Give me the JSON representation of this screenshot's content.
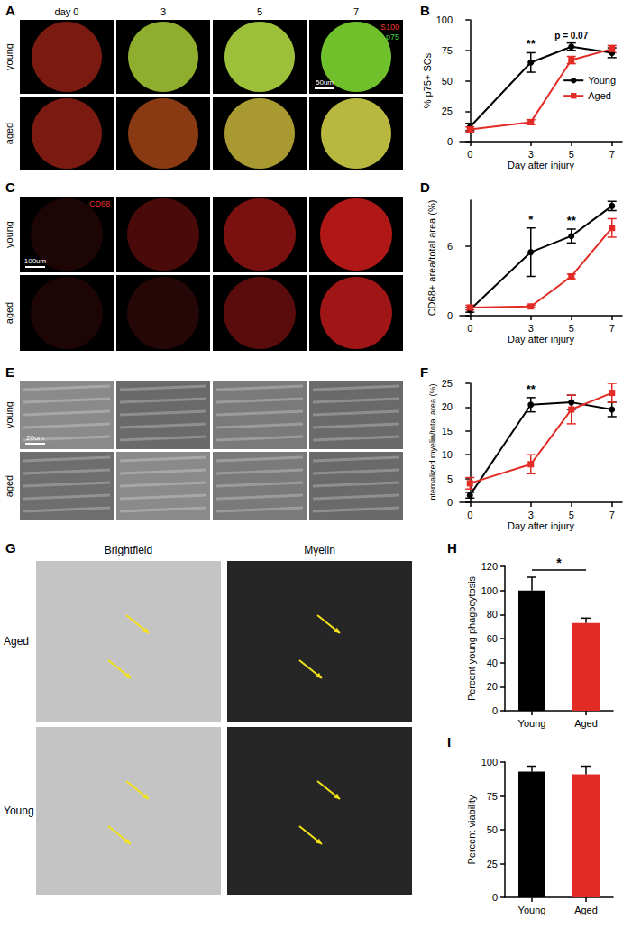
{
  "image_panels": [
    {
      "panel": "A",
      "columns": [
        "day 0",
        "3",
        "5",
        "7"
      ],
      "rows": [
        "young",
        "aged"
      ],
      "stains": [
        {
          "text": "S100",
          "color": "#e8332a"
        },
        {
          "text": "p75",
          "color": "#3fd43f"
        }
      ],
      "scale_bar": "50um"
    },
    {
      "panel": "C",
      "rows": [
        "young",
        "aged"
      ],
      "stains": [
        {
          "text": "CD68",
          "color": "#e8332a"
        }
      ],
      "scale_bar": "100um"
    },
    {
      "panel": "E",
      "rows": [
        "young",
        "aged"
      ],
      "scale_bar": "20um"
    },
    {
      "panel": "G",
      "columns": [
        "Brightfield",
        "Myelin"
      ],
      "rows": [
        "Aged",
        "Young"
      ]
    }
  ],
  "chart_data": [
    {
      "panel": "B",
      "type": "line",
      "x_label": "Day after injury",
      "y_label": "% p75+ SCs",
      "x": [
        0,
        3,
        5,
        7
      ],
      "xlim": [
        -0.5,
        7.5
      ],
      "xticks": [
        0,
        3,
        5,
        7
      ],
      "ylim": [
        0,
        100
      ],
      "yticks": [
        0,
        25,
        50,
        75,
        100
      ],
      "grid": false,
      "legend": "right",
      "series": [
        {
          "name": "Young",
          "color": "#000000",
          "marker": "circle",
          "values": [
            12,
            65,
            78,
            73
          ],
          "errors": [
            3,
            8,
            3,
            4
          ]
        },
        {
          "name": "Aged",
          "color": "#e32b26",
          "marker": "square",
          "values": [
            10,
            16,
            67,
            76
          ],
          "errors": [
            2,
            2,
            3,
            3
          ]
        }
      ],
      "annotations": [
        {
          "x": 3,
          "text": "**"
        },
        {
          "x": 5,
          "text": "p = 0.07"
        }
      ]
    },
    {
      "panel": "D",
      "type": "line",
      "x_label": "Day after injury",
      "y_label": "CD68+ area/total area (%)",
      "x": [
        0,
        3,
        5,
        7
      ],
      "xlim": [
        -0.5,
        7.5
      ],
      "xticks": [
        0,
        3,
        5,
        7
      ],
      "ylim": [
        0,
        10
      ],
      "yticks": [
        0,
        6
      ],
      "grid": false,
      "series": [
        {
          "name": "Young",
          "color": "#000000",
          "marker": "circle",
          "values": [
            0.5,
            5.5,
            6.9,
            9.5
          ],
          "errors": [
            0.2,
            2.1,
            0.6,
            0.4
          ]
        },
        {
          "name": "Aged",
          "color": "#e32b26",
          "marker": "square",
          "values": [
            0.7,
            0.8,
            3.4,
            7.6
          ],
          "errors": [
            0.2,
            0.1,
            0.2,
            0.8
          ]
        }
      ],
      "annotations": [
        {
          "x": 3,
          "text": "*"
        },
        {
          "x": 5,
          "text": "**"
        }
      ]
    },
    {
      "panel": "F",
      "type": "line",
      "x_label": "Day after injury",
      "y_label": "internalized myelin/total area (%)",
      "x": [
        0,
        3,
        5,
        7
      ],
      "xlim": [
        -0.5,
        7.5
      ],
      "xticks": [
        0,
        3,
        5,
        7
      ],
      "ylim": [
        0,
        25
      ],
      "yticks": [
        0,
        5,
        10,
        15,
        20,
        25
      ],
      "grid": false,
      "series": [
        {
          "name": "Young",
          "color": "#000000",
          "marker": "circle",
          "values": [
            1.5,
            20.5,
            21,
            19.5
          ],
          "errors": [
            0.6,
            1.5,
            1.5,
            1.5
          ]
        },
        {
          "name": "Aged",
          "color": "#e32b26",
          "marker": "square",
          "values": [
            4,
            8,
            19.5,
            23
          ],
          "errors": [
            1.2,
            2,
            3,
            2
          ]
        }
      ],
      "annotations": [
        {
          "x": 3,
          "text": "**"
        }
      ]
    },
    {
      "panel": "H",
      "type": "bar",
      "y_label": "Percent young phagocytosis",
      "categories": [
        "Young",
        "Aged"
      ],
      "values": [
        100,
        73
      ],
      "errors": [
        11,
        4
      ],
      "colors": [
        "#000000",
        "#e32b26"
      ],
      "ylim": [
        0,
        120
      ],
      "yticks": [
        0,
        20,
        40,
        60,
        80,
        100,
        120
      ],
      "grid": false,
      "annotations": [
        {
          "from": "Young",
          "to": "Aged",
          "text": "*"
        }
      ]
    },
    {
      "panel": "I",
      "type": "bar",
      "y_label": "Percent viability",
      "categories": [
        "Young",
        "Aged"
      ],
      "values": [
        93,
        91
      ],
      "errors": [
        4,
        6
      ],
      "colors": [
        "#000000",
        "#e32b26"
      ],
      "ylim": [
        0,
        100
      ],
      "yticks": [
        0,
        25,
        50,
        75,
        100
      ],
      "grid": false
    }
  ]
}
